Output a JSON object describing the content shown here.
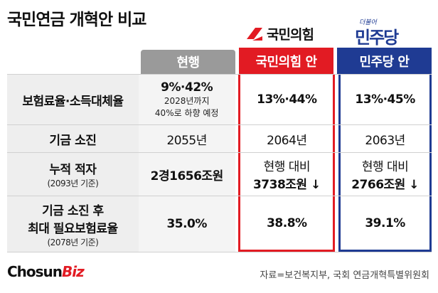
{
  "title": "국민연금 개혁안 비교",
  "logos": {
    "ppp_name": "국민의힘",
    "dp_small": "더불어",
    "dp_big": "민주당"
  },
  "colors": {
    "ppp": "#e21b23",
    "dp": "#1f3b93",
    "current": "#9a9a9a"
  },
  "headers": {
    "current": "현행",
    "ppp": "국민의힘 안",
    "dp": "민주당 안"
  },
  "rows": [
    {
      "label": "보험료율·소득대체율",
      "label_sub": "",
      "current": "9%·42%",
      "current_sub1": "2028년까지",
      "current_sub2": "40%로 하향 예정",
      "ppp": "13%·44%",
      "ppp_sub": "",
      "dp": "13%·45%",
      "dp_sub": ""
    },
    {
      "label": "기금 소진",
      "label_sub": "",
      "current": "2055년",
      "ppp": "2064년",
      "dp": "2063년"
    },
    {
      "label": "누적 적자",
      "label_sub": "(2093년 기준)",
      "current": "2경1656조원",
      "ppp": "현행 대비",
      "ppp_sub": "3738조원 ↓",
      "dp": "현행 대비",
      "dp_sub": "2766조원 ↓"
    },
    {
      "label": "기금 소진 후",
      "label_line2": "최대 필요보험료율",
      "label_sub": "(2078년 기준)",
      "current": "35.0%",
      "ppp": "38.8%",
      "dp": "39.1%"
    }
  ],
  "footer": {
    "brand_main": "Chosun",
    "brand_accent": "Biz",
    "source": "자료=보건복지부, 국회 연금개혁특별위원회"
  }
}
